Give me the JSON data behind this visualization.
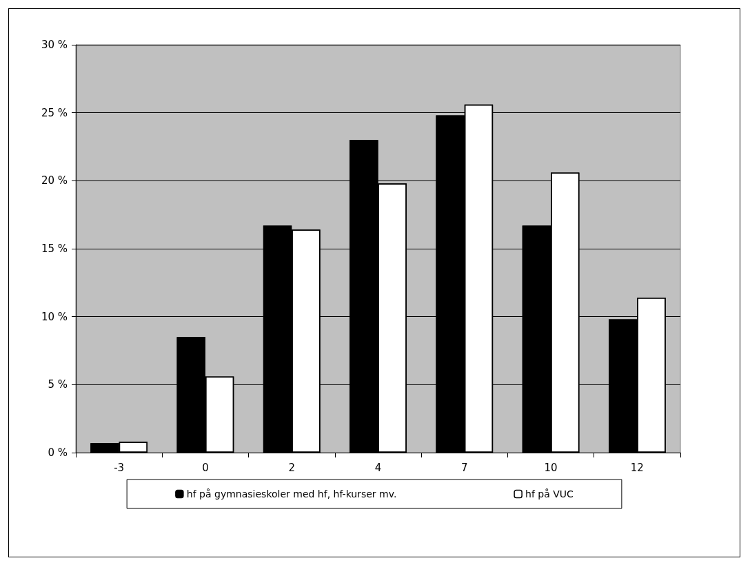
{
  "chart_data": {
    "type": "bar",
    "categories": [
      "-3",
      "0",
      "2",
      "4",
      "7",
      "10",
      "12"
    ],
    "series": [
      {
        "name": "hf på gymnasieskoler med hf, hf-kurser mv.",
        "color": "#000000",
        "values": [
          0.7,
          8.5,
          16.7,
          23.0,
          24.8,
          16.7,
          9.8
        ]
      },
      {
        "name": "hf på VUC",
        "color": "#ffffff",
        "values": [
          0.8,
          5.6,
          16.4,
          19.8,
          25.6,
          20.6,
          11.4
        ]
      }
    ],
    "ylim": [
      0,
      30
    ],
    "yticks": [
      {
        "value": 0,
        "label": "0 %"
      },
      {
        "value": 5,
        "label": "5 %"
      },
      {
        "value": 10,
        "label": "10 %"
      },
      {
        "value": 15,
        "label": "15 %"
      },
      {
        "value": 20,
        "label": "20 %"
      },
      {
        "value": 25,
        "label": "25 %"
      },
      {
        "value": 30,
        "label": "30 %"
      }
    ],
    "grid": "y",
    "legend": "bottom"
  }
}
